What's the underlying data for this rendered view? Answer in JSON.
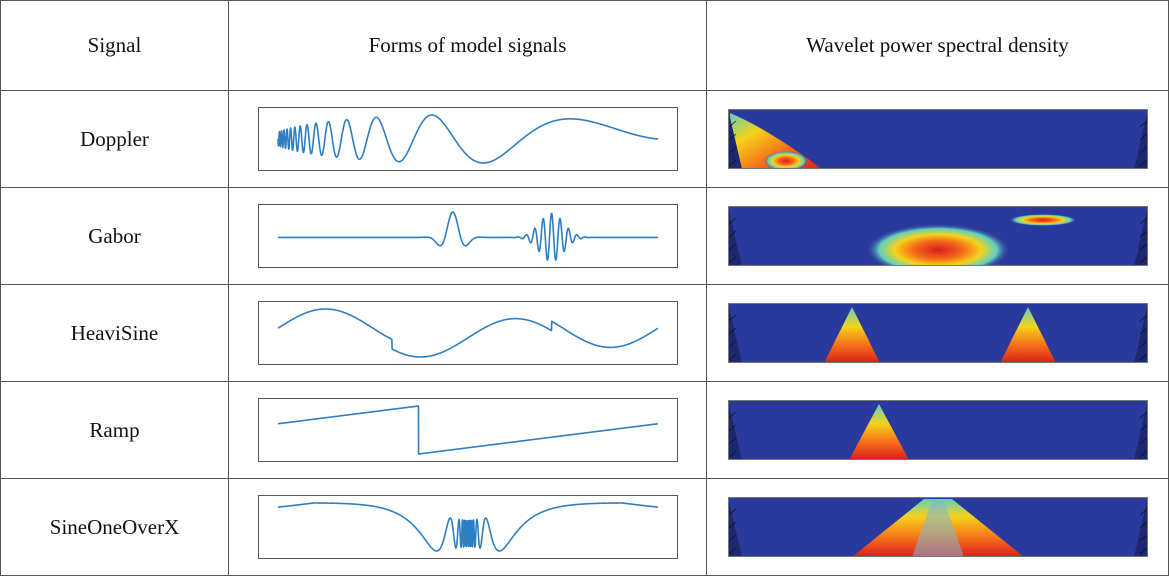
{
  "table": {
    "headers": [
      "Signal",
      "Forms of model signals",
      "Wavelet power spectral density"
    ],
    "rows": [
      {
        "signal": "Doppler",
        "waveform": "doppler",
        "spectrum": "doppler"
      },
      {
        "signal": "Gabor",
        "waveform": "gabor",
        "spectrum": "gabor"
      },
      {
        "signal": "HeaviSine",
        "waveform": "heavisine",
        "spectrum": "heavisine"
      },
      {
        "signal": "Ramp",
        "waveform": "ramp",
        "spectrum": "ramp"
      },
      {
        "signal": "SineOneOverX",
        "waveform": "sineoneoverx",
        "spectrum": "sineoneoverx"
      }
    ]
  },
  "colors": {
    "signal_line": "#2e7ec2",
    "spectrum_background": "#2a3a9c",
    "spectrum_cone": "#1c2870",
    "hot": "#d81e1e",
    "warm": "#f5d31a",
    "mid": "#5fd0c0"
  }
}
